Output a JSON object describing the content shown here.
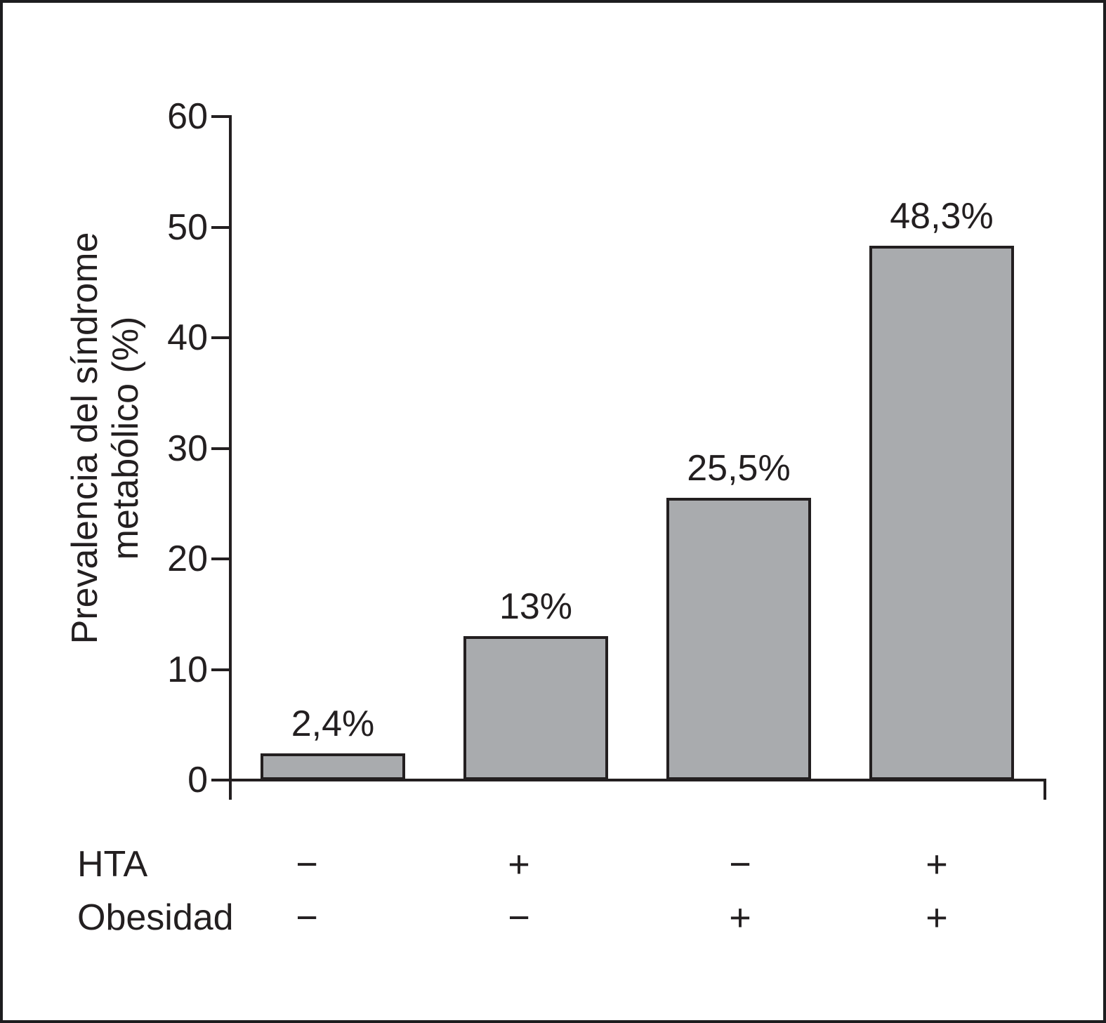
{
  "chart_data": {
    "type": "bar",
    "title": "",
    "ylabel_line1": "Prevalencia del síndrome",
    "ylabel_line2": "metabólico (%)",
    "ylabel": "Prevalencia del síndrome metabólico (%)",
    "ylim": [
      0,
      60
    ],
    "yticks": [
      60,
      50,
      40,
      30,
      20,
      10,
      0
    ],
    "values": [
      2.4,
      13,
      25.5,
      48.3
    ],
    "bar_value_labels": [
      "2,4%",
      "13%",
      "25,5%",
      "48,3%"
    ],
    "row_headers": [
      "HTA",
      "Obesidad"
    ],
    "sign_rows": {
      "hta": [
        "−",
        "+",
        "−",
        "+"
      ],
      "obesidad": [
        "−",
        "−",
        "+",
        "+"
      ]
    },
    "grid": false,
    "legend": false,
    "colors": {
      "bar_fill": "#a9abae",
      "stroke": "#231f20",
      "background": "#ffffff"
    }
  }
}
